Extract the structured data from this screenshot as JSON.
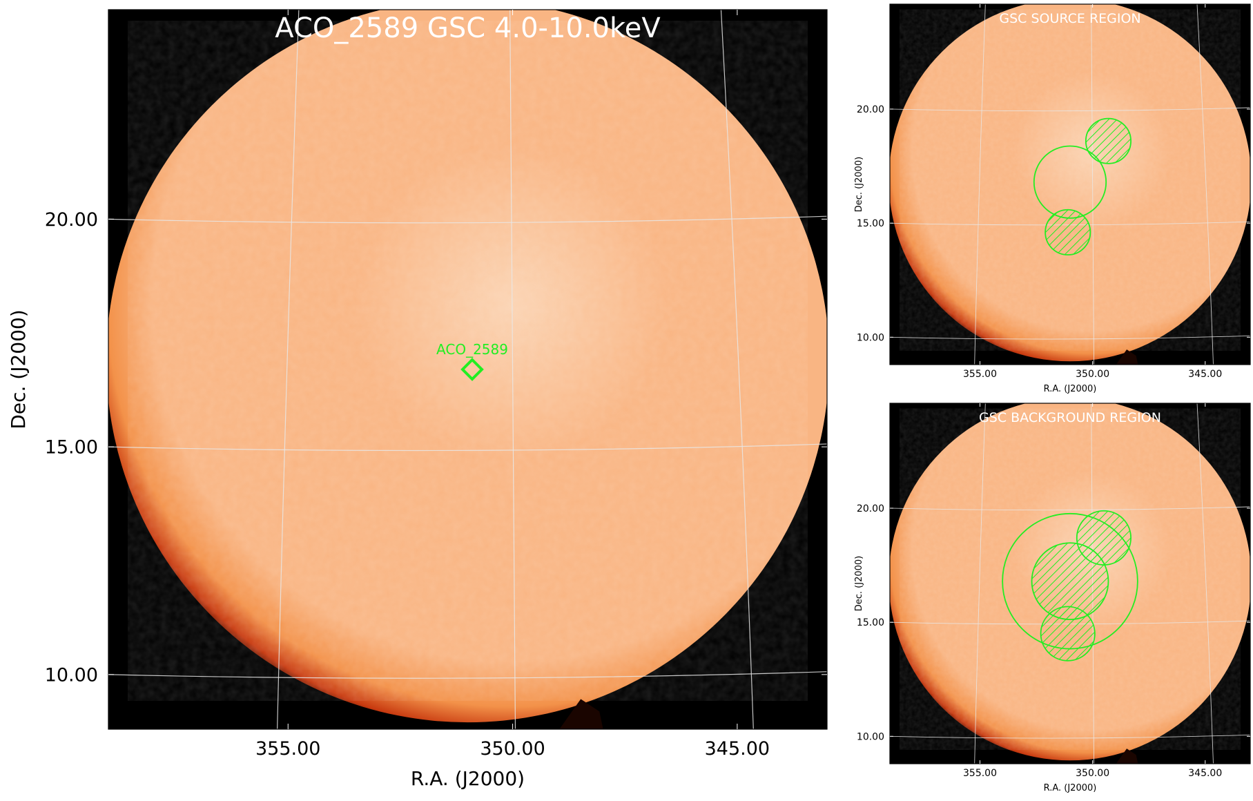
{
  "colors": {
    "background": "#000000",
    "disk_center": "#fbd3b2",
    "disk_mid": "#f9b583",
    "disk_edge": "#f3924a",
    "disk_rim": "#c83a10",
    "grid": "#e8e8e8",
    "region": "#22ee22",
    "title_text": "#ffffff",
    "axis_text": "#000000"
  },
  "chart_data": [
    {
      "type": "heatmap",
      "id": "main",
      "title": "ACO_2589 GSC 4.0-10.0keV",
      "xlabel": "R.A. (J2000)",
      "ylabel": "Dec. (J2000)",
      "xlim": [
        359.0,
        343.0
      ],
      "ylim": [
        8.8,
        24.6
      ],
      "xticks": [
        355.0,
        350.0,
        345.0
      ],
      "xtick_labels": [
        "355.00",
        "350.00",
        "345.00"
      ],
      "yticks": [
        10.0,
        15.0,
        20.0
      ],
      "ytick_labels": [
        "10.00",
        "15.00",
        "20.00"
      ],
      "grid": true,
      "markers": [
        {
          "label": "ACO_2589",
          "ra": 350.9,
          "dec": 16.7,
          "shape": "diamond"
        }
      ]
    },
    {
      "type": "heatmap",
      "id": "source",
      "title": "GSC SOURCE REGION",
      "xlabel": "R.A. (J2000)",
      "ylabel": "Dec. (J2000)",
      "xlim": [
        359.0,
        343.0
      ],
      "ylim": [
        8.8,
        24.6
      ],
      "xticks": [
        355.0,
        350.0,
        345.0
      ],
      "xtick_labels": [
        "355.00",
        "350.00",
        "345.00"
      ],
      "yticks": [
        10.0,
        15.0,
        20.0
      ],
      "ytick_labels": [
        "10.00",
        "15.00",
        "20.00"
      ],
      "grid": true,
      "regions": [
        {
          "ra": 351.0,
          "dec": 16.8,
          "radius": 1.6,
          "hatched": false
        },
        {
          "ra": 349.3,
          "dec": 18.6,
          "radius": 1.0,
          "hatched": true
        },
        {
          "ra": 351.1,
          "dec": 14.6,
          "radius": 1.0,
          "hatched": true
        }
      ]
    },
    {
      "type": "heatmap",
      "id": "background",
      "title": "GSC BACKGROUND REGION",
      "xlabel": "R.A. (J2000)",
      "ylabel": "Dec. (J2000)",
      "xlim": [
        359.0,
        343.0
      ],
      "ylim": [
        8.8,
        24.6
      ],
      "xticks": [
        355.0,
        350.0,
        345.0
      ],
      "xtick_labels": [
        "355.00",
        "350.00",
        "345.00"
      ],
      "yticks": [
        10.0,
        15.0,
        20.0
      ],
      "ytick_labels": [
        "10.00",
        "15.00",
        "20.00"
      ],
      "grid": true,
      "regions": [
        {
          "ra": 351.0,
          "dec": 16.8,
          "radius": 3.0,
          "hatched": false
        },
        {
          "ra": 351.0,
          "dec": 16.8,
          "radius": 1.7,
          "hatched": true
        },
        {
          "ra": 349.5,
          "dec": 18.7,
          "radius": 1.2,
          "hatched": true
        },
        {
          "ra": 351.1,
          "dec": 14.5,
          "radius": 1.2,
          "hatched": true
        }
      ]
    }
  ]
}
